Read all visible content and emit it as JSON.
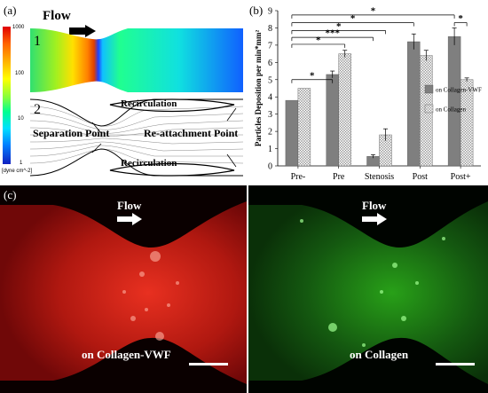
{
  "panels": {
    "a": "(a)",
    "b": "(b)",
    "c": "(c)"
  },
  "panel_a": {
    "flow_label": "Flow",
    "sub1": "1",
    "sub2": "2",
    "colorbar": {
      "ticks": [
        "1000",
        "100",
        "10",
        "1"
      ],
      "unit": "[dyne cm^-2]"
    },
    "streamlines": {
      "top_recirc": "Recirculation",
      "bottom_recirc": "Recirculation",
      "separation": "Separation Point",
      "reattachment": "Re-attachment Point"
    },
    "colors": {
      "inlet": "#e05010",
      "throat": "#20a0e0",
      "outlet": "#2040ff"
    }
  },
  "panel_c": {
    "left": {
      "flow": "Flow",
      "caption": "on Collagen-VWF",
      "color": "#d02010"
    },
    "right": {
      "flow": "Flow",
      "caption": "on Collagen",
      "color": "#30c020"
    }
  },
  "chart_data": {
    "type": "bar",
    "ylabel": "Particles Deposition per min*mm²",
    "ylim": [
      0,
      9
    ],
    "yticks": [
      "0",
      "1",
      "2",
      "3",
      "4",
      "5",
      "6",
      "7",
      "8",
      "9"
    ],
    "categories": [
      "Pre-",
      "Pre",
      "Stenosis",
      "Post",
      "Post+"
    ],
    "series": [
      {
        "name": "on Collagen-VWF",
        "values": [
          3.8,
          5.3,
          0.55,
          7.2,
          7.5
        ],
        "errors": [
          0,
          0.2,
          0.1,
          0.45,
          0.5
        ],
        "color": "#7f7f7f"
      },
      {
        "name": "on Collagen",
        "values": [
          4.5,
          6.5,
          1.8,
          6.4,
          5.0
        ],
        "errors": [
          0,
          0.2,
          0.35,
          0.3,
          0.1
        ],
        "color": "#d9d9d9"
      }
    ],
    "legend_position": "right",
    "significance": [
      {
        "from": [
          0,
          0
        ],
        "to": [
          1,
          0
        ],
        "label": "*"
      },
      {
        "from": [
          0,
          0
        ],
        "to": [
          1,
          1
        ],
        "label": "*"
      },
      {
        "from": [
          0,
          0
        ],
        "to": [
          2,
          0
        ],
        "label": "***"
      },
      {
        "from": [
          0,
          0
        ],
        "to": [
          2,
          1
        ],
        "label": "*"
      },
      {
        "from": [
          0,
          0
        ],
        "to": [
          3,
          0
        ],
        "label": "*"
      },
      {
        "from": [
          0,
          0
        ],
        "to": [
          4,
          0
        ],
        "label": "*"
      },
      {
        "from": [
          4,
          0
        ],
        "to": [
          4,
          1
        ],
        "label": "*"
      }
    ]
  }
}
